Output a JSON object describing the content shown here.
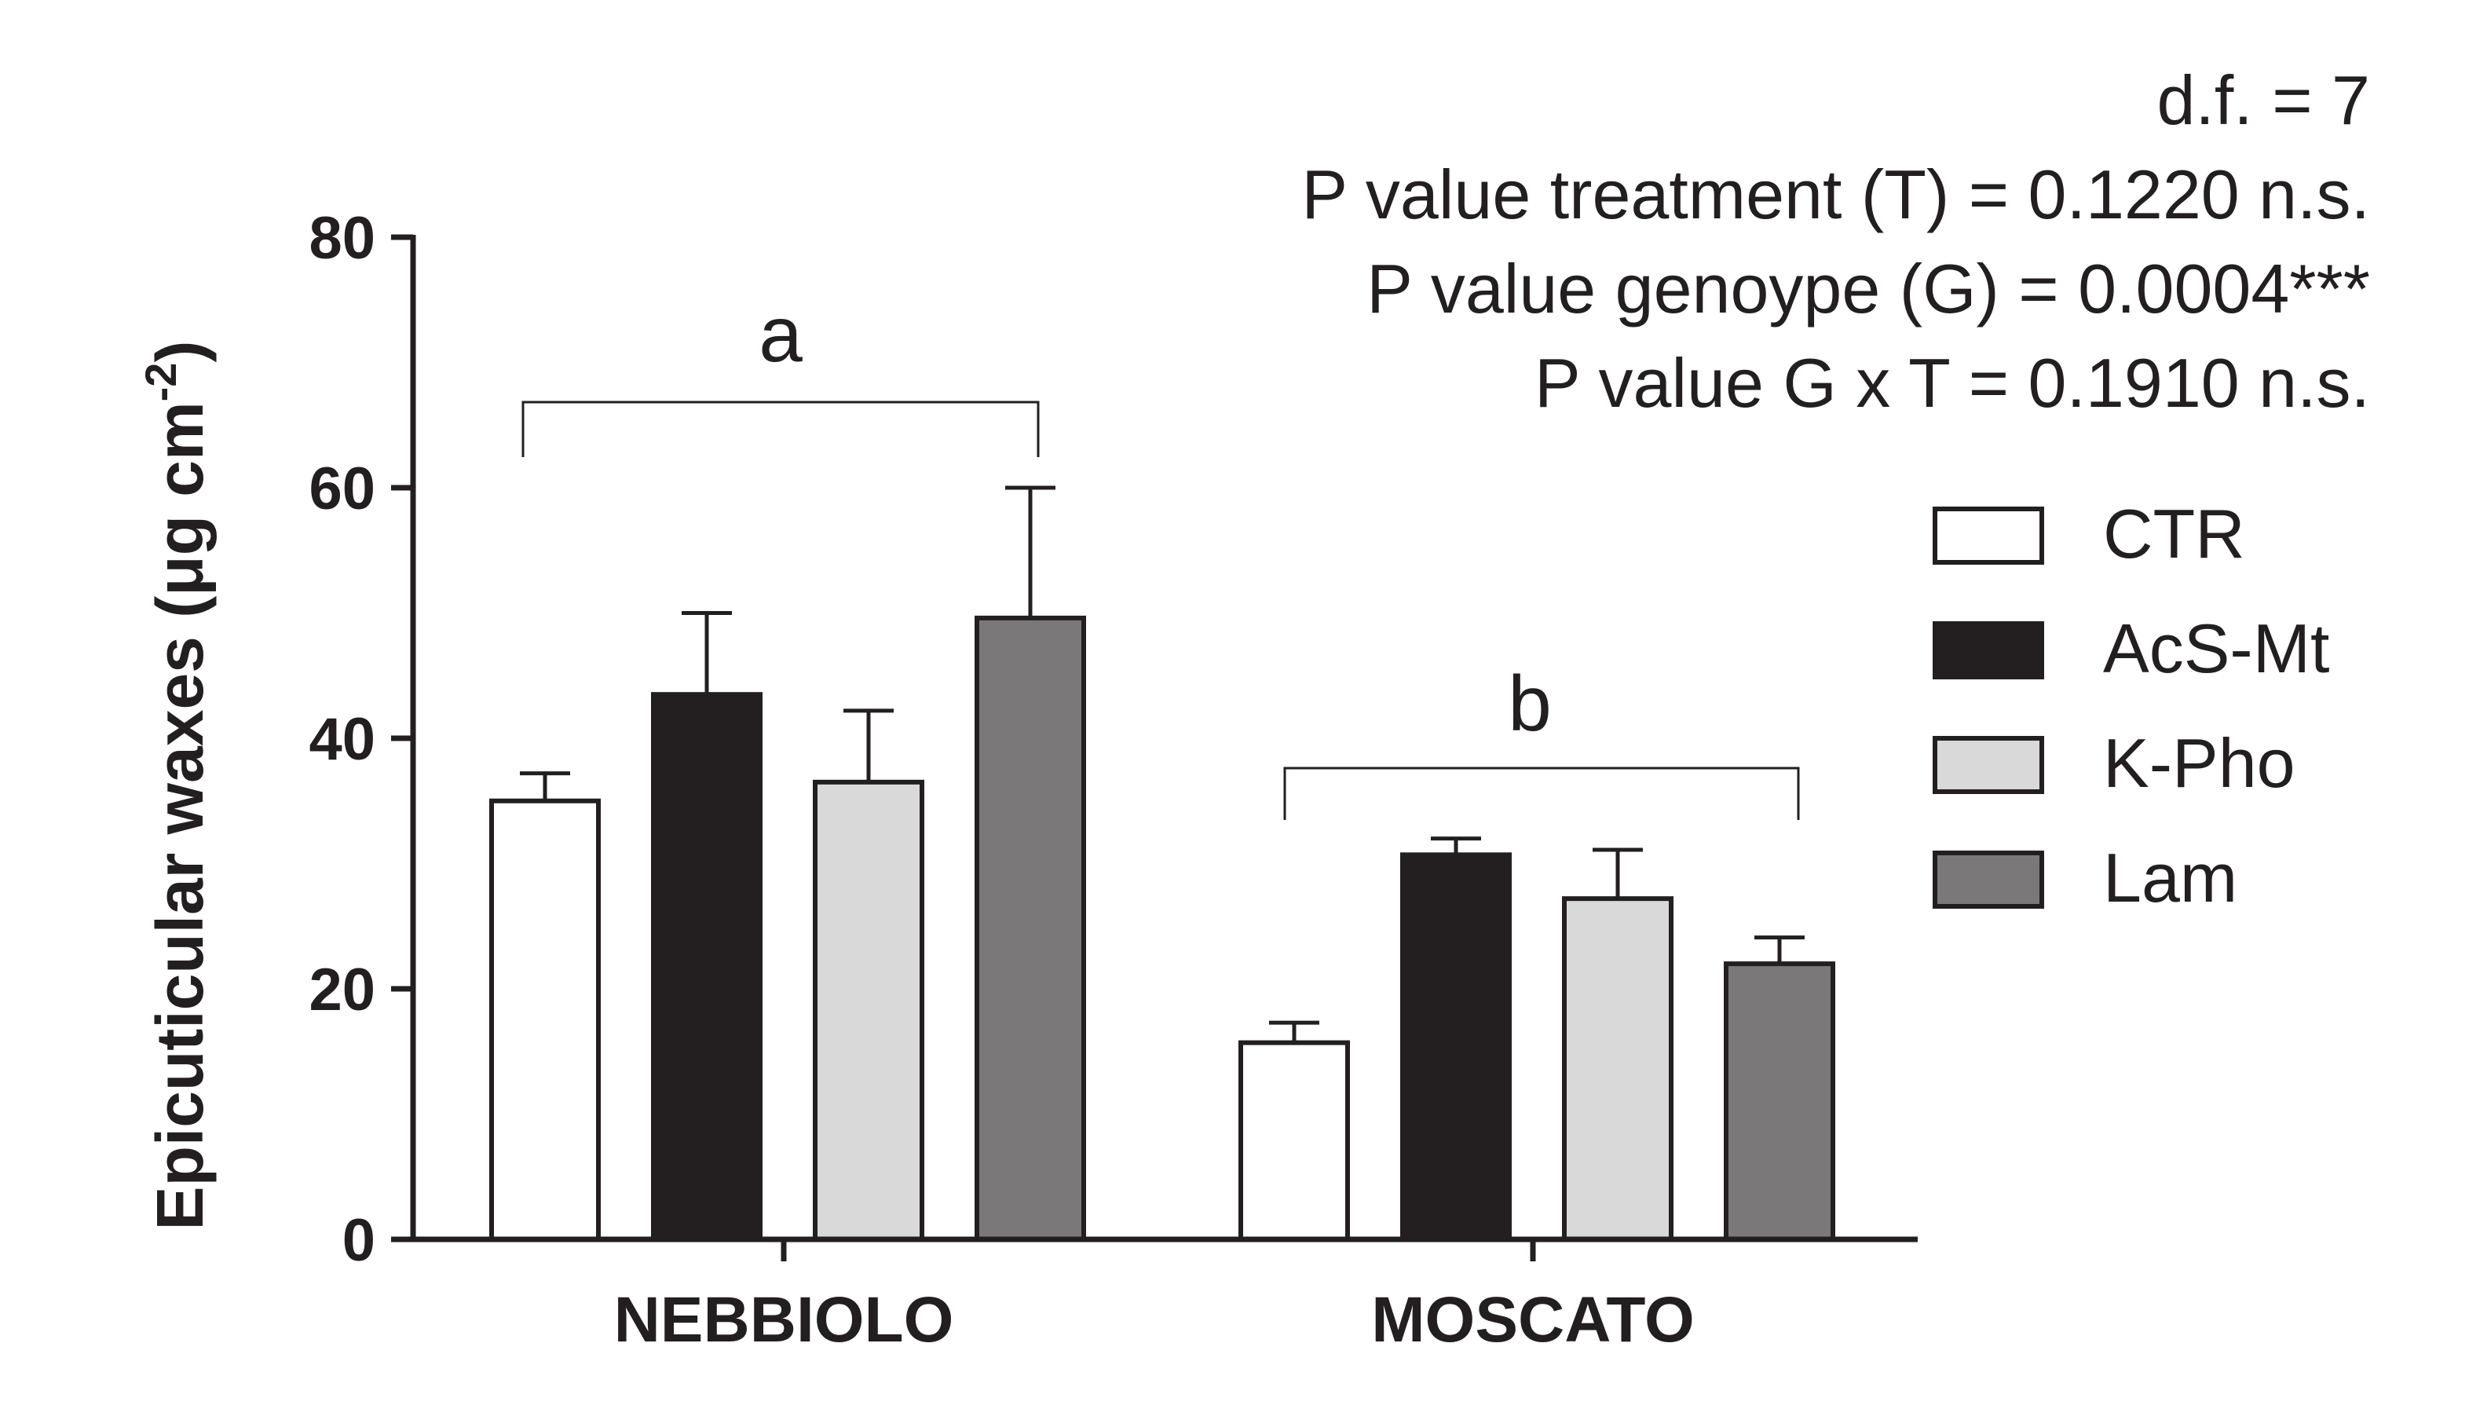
{
  "chart_data": {
    "type": "bar",
    "categories": [
      "NEBBIOLO",
      "MOSCATO"
    ],
    "series": [
      {
        "name": "CTR",
        "color": "#ffffff",
        "values": [
          35.0,
          15.7
        ],
        "errors": [
          2.2,
          1.6
        ]
      },
      {
        "name": "AcS-Mt",
        "color": "#231f20",
        "values": [
          43.5,
          30.7
        ],
        "errors": [
          6.5,
          1.3
        ]
      },
      {
        "name": "K-Pho",
        "color": "#d9d9d9",
        "values": [
          36.5,
          27.2
        ],
        "errors": [
          5.7,
          3.9
        ]
      },
      {
        "name": "Lam",
        "color": "#7a7879",
        "values": [
          49.6,
          22.0
        ],
        "errors": [
          10.4,
          2.1
        ]
      }
    ],
    "ylabel_main": "Epicuticular waxes (μg cm",
    "ylabel_sup": "-2",
    "ylabel_close": ")",
    "xlabel": "",
    "ylim": [
      0,
      80
    ],
    "yticks": [
      "0",
      "20",
      "40",
      "60",
      "80"
    ],
    "group_letters": [
      "a",
      "b"
    ],
    "annotations": [
      "d.f. = 7",
      "P value treatment (T) = 0.1220 n.s.",
      "P value genoype (G) = 0.0004***",
      "P value G x  T = 0.1910 n.s."
    ],
    "legend_position": "right",
    "grid": false
  }
}
